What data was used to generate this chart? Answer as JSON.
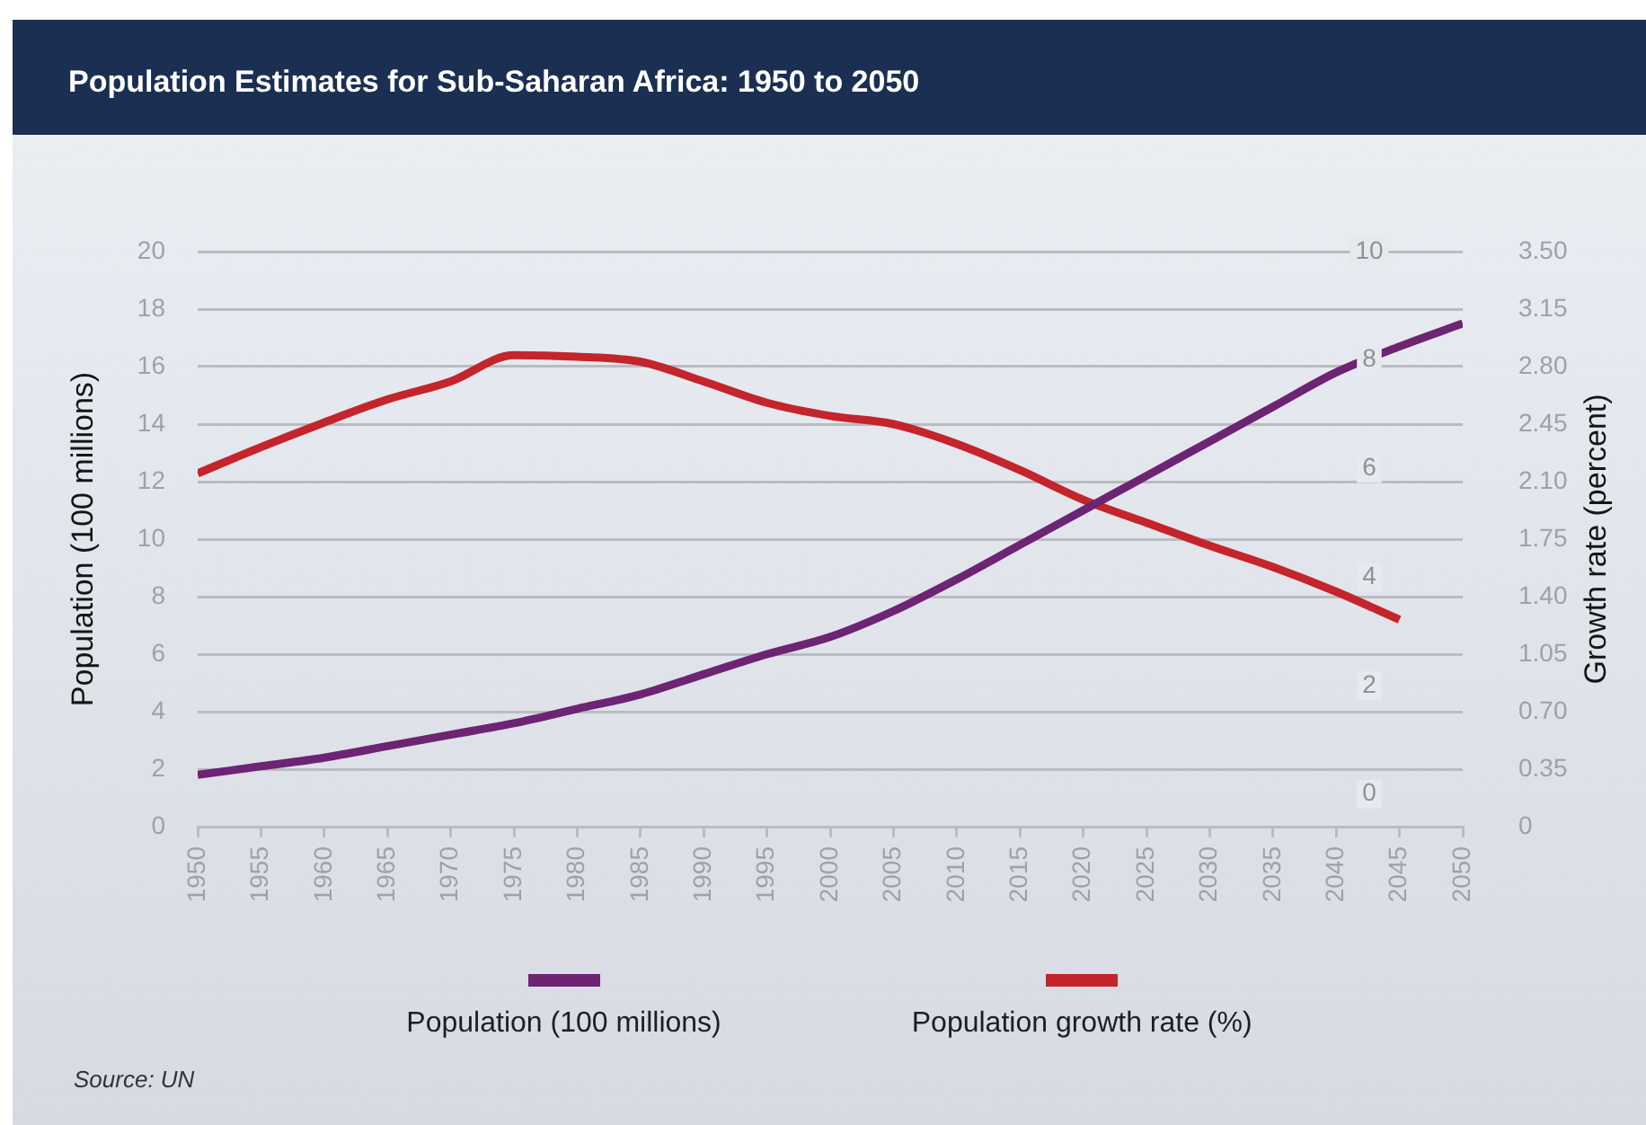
{
  "chart_data": {
    "type": "line",
    "title": "Population Estimates for Sub-Saharan Africa: 1950 to 2050",
    "ylabel": "Population (100 millions)",
    "y2label": "Growth rate (percent)",
    "x": [
      1950,
      1955,
      1960,
      1965,
      1970,
      1975,
      1980,
      1985,
      1990,
      1995,
      2000,
      2005,
      2010,
      2015,
      2020,
      2025,
      2030,
      2035,
      2040,
      2045,
      2050
    ],
    "series": [
      {
        "name": "Population (100 millions)",
        "color": "#6c2473",
        "values": [
          1.8,
          2.1,
          2.4,
          2.8,
          3.2,
          3.6,
          4.1,
          4.6,
          5.3,
          6.0,
          6.6,
          7.5,
          8.6,
          9.8,
          11.0,
          12.2,
          13.4,
          14.6,
          15.8,
          16.7,
          17.5
        ]
      },
      {
        "name": "Population growth rate (%)",
        "color": "#c4242b",
        "axis": "y2",
        "x": [
          1950,
          1955,
          1960,
          1965,
          1970,
          1975,
          1980,
          1985,
          1990,
          1995,
          2000,
          2005,
          2010,
          2015,
          2020,
          2025,
          2030,
          2035,
          2040,
          2045
        ],
        "values": [
          2.15,
          2.31,
          2.46,
          2.6,
          2.71,
          2.87,
          2.86,
          2.83,
          2.71,
          2.58,
          2.5,
          2.45,
          2.33,
          2.17,
          1.99,
          1.85,
          1.71,
          1.58,
          1.43,
          1.26
        ]
      }
    ],
    "xlim": [
      1950,
      2050
    ],
    "xticks": [
      1950,
      1955,
      1960,
      1965,
      1970,
      1975,
      1980,
      1985,
      1990,
      1995,
      2000,
      2005,
      2010,
      2015,
      2020,
      2025,
      2030,
      2035,
      2040,
      2045,
      2050
    ],
    "ylim": [
      0,
      20
    ],
    "yticks": [
      0,
      2,
      4,
      6,
      8,
      10,
      12,
      14,
      16,
      18,
      20
    ],
    "y2lim": [
      0,
      3.5
    ],
    "y2ticks": [
      0,
      0.35,
      {
        "value": 0.7,
        "label": "0.70"
      },
      1.05,
      {
        "value": 1.4,
        "label": "1.40"
      },
      1.75,
      {
        "value": 2.1,
        "label": "2.10"
      },
      2.45,
      {
        "value": 2.8,
        "label": "2.80"
      },
      3.15,
      {
        "value": 3.5,
        "label": "3.50"
      }
    ],
    "y3lim": [
      -0.6,
      10
    ],
    "y3ticks": [
      0,
      2,
      4,
      6,
      8,
      10
    ],
    "grid": "y",
    "legend": "bottom",
    "marker": "none",
    "line_style": "solid",
    "annotations": [
      "Source: UN"
    ]
  }
}
